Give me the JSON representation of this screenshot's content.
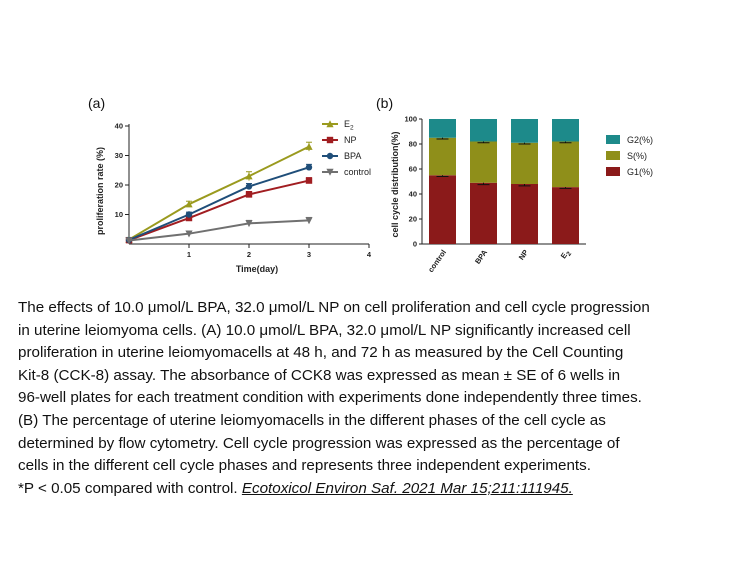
{
  "chart_data": [
    {
      "type": "line",
      "panel_label": "(a)",
      "xlabel": "Time(day)",
      "ylabel": "proliferation rate (%)",
      "xlim": [
        0,
        4
      ],
      "ylim": [
        0,
        40
      ],
      "xticks": [
        "1",
        "2",
        "3",
        "4"
      ],
      "yticks": [
        "10",
        "20",
        "30",
        "40"
      ],
      "legend_position": "top-right",
      "series": [
        {
          "name_main": "E",
          "name_sub": "2",
          "color": "#9a9a1e",
          "marker": "triangle",
          "x": [
            0,
            1,
            2,
            3
          ],
          "y": [
            1.5,
            13.5,
            23,
            33
          ],
          "err": [
            0.5,
            1,
            1.5,
            1.5
          ]
        },
        {
          "name_main": "NP",
          "name_sub": "",
          "color": "#a11d21",
          "marker": "square",
          "x": [
            0,
            1,
            2,
            3
          ],
          "y": [
            1.3,
            8.8,
            16.8,
            21.5
          ],
          "err": [
            0.5,
            0.8,
            1,
            1
          ]
        },
        {
          "name_main": "BPA",
          "name_sub": "",
          "color": "#1f4e79",
          "marker": "circle",
          "x": [
            0,
            1,
            2,
            3
          ],
          "y": [
            1.4,
            10,
            19.5,
            26
          ],
          "err": [
            0.5,
            0.8,
            1,
            1
          ]
        },
        {
          "name_main": "control",
          "name_sub": "",
          "color": "#707070",
          "marker": "triangle-down",
          "x": [
            0,
            1,
            2,
            3
          ],
          "y": [
            1.2,
            3.5,
            7,
            8
          ],
          "err": [
            0.5,
            0.8,
            1,
            1
          ]
        }
      ]
    },
    {
      "type": "bar",
      "stacked": true,
      "panel_label": "(b)",
      "xlabel": "",
      "ylabel": "cell cycle distribution(%)",
      "ylim": [
        0,
        100
      ],
      "yticks": [
        "0",
        "20",
        "40",
        "60",
        "80",
        "100"
      ],
      "categories": [
        {
          "main": "control",
          "sub": ""
        },
        {
          "main": "BPA",
          "sub": ""
        },
        {
          "main": "NP",
          "sub": ""
        },
        {
          "main": "E",
          "sub": "2"
        }
      ],
      "legend_position": "right",
      "series": [
        {
          "name": "G1(%)",
          "color": "#8b1a1a",
          "values": [
            55,
            49,
            48,
            45.5
          ],
          "err": [
            1,
            1.5,
            1.5,
            1
          ]
        },
        {
          "name": "S(%)",
          "color": "#8f8f1a",
          "values": [
            30,
            33,
            33,
            36.5
          ],
          "err": [
            1,
            1,
            1,
            1
          ]
        },
        {
          "name": "G2(%)",
          "color": "#1d8a8a",
          "values": [
            15,
            18,
            19,
            18
          ],
          "err": [
            0,
            0,
            0,
            0
          ]
        }
      ]
    }
  ],
  "caption": {
    "lines": [
      "The effects of 10.0 μmol/L BPA, 32.0 μmol/L NP on cell proliferation and cell cycle progression",
      "in uterine leiomyoma cells. (A) 10.0 μmol/L BPA, 32.0 μmol/L NP significantly increased cell",
      "proliferation in uterine leiomyomacells at 48 h, and 72 h as measured by the Cell Counting",
      "Kit-8 (CCK-8) assay. The absorbance of CCK8 was expressed as mean ± SE of 6 wells in",
      "96-well plates for each treatment condition with experiments done independently three times.",
      "(B) The percentage of uterine leiomyomacells in the different phases of the cell cycle as",
      "determined by flow cytometry. Cell cycle progression was expressed as the percentage of",
      "cells in the different cell cycle phases and represents three independent experiments."
    ],
    "last_line_prefix": "*P < 0.05 compared with control. ",
    "citation": "Ecotoxicol Environ Saf. 2021 Mar 15;211:111945."
  }
}
